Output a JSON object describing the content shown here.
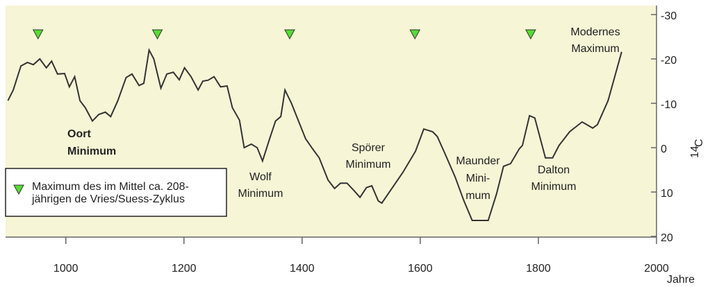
{
  "chart_data": {
    "type": "line",
    "xlabel": "Jahre",
    "ylabel_sup": "14",
    "ylabel": "C",
    "xlim": [
      898,
      2000
    ],
    "xticks": [
      1000,
      1200,
      1400,
      1600,
      1800,
      2000
    ],
    "ylim": [
      20,
      -30
    ],
    "yticks": [
      -30,
      -20,
      -10,
      0,
      10,
      20
    ],
    "series": [
      {
        "color": "#333333",
        "x": [
          902,
          911,
          924,
          935,
          945,
          956,
          967,
          976,
          986,
          998,
          1006,
          1015,
          1024,
          1033,
          1045,
          1056,
          1067,
          1076,
          1088,
          1102,
          1112,
          1124,
          1132,
          1141,
          1149,
          1161,
          1171,
          1182,
          1192,
          1201,
          1212,
          1224,
          1232,
          1241,
          1251,
          1262,
          1273,
          1282,
          1294,
          1302,
          1314,
          1324,
          1333,
          1345,
          1355,
          1364,
          1371,
          1382,
          1394,
          1406,
          1418,
          1429,
          1444,
          1455,
          1465,
          1476,
          1488,
          1498,
          1509,
          1518,
          1529,
          1535,
          1553,
          1571,
          1592,
          1606,
          1621,
          1629,
          1641,
          1659,
          1674,
          1688,
          1698,
          1715,
          1729,
          1741,
          1753,
          1768,
          1773,
          1785,
          1794,
          1812,
          1824,
          1835,
          1853,
          1874,
          1892,
          1900,
          1918,
          1941
        ],
        "values": [
          -10.6,
          -13,
          -18.4,
          -19.2,
          -18.7,
          -20,
          -18,
          -19.5,
          -16.6,
          -16.7,
          -13.7,
          -16,
          -10.6,
          -9,
          -6,
          -7.5,
          -8,
          -7,
          -10.6,
          -15.8,
          -16.6,
          -14,
          -14.5,
          -22,
          -20,
          -13.4,
          -16.6,
          -17,
          -15.3,
          -18,
          -16,
          -13,
          -15,
          -15.2,
          -16,
          -13.7,
          -13.9,
          -9,
          -6.2,
          0,
          -0.8,
          0,
          3,
          -2,
          -6,
          -7,
          -13,
          -10,
          -6,
          -2,
          0.3,
          2.3,
          7.3,
          9.2,
          8,
          8,
          9.7,
          11.2,
          9,
          8.6,
          12,
          12.5,
          9,
          5.5,
          0.8,
          -4.2,
          -3.6,
          -2.5,
          1.1,
          6.6,
          12,
          16.4,
          16.4,
          16.4,
          10.5,
          4.2,
          3.6,
          0.2,
          -0.5,
          -7.2,
          -6.7,
          2.3,
          2.3,
          -0.5,
          -3.6,
          -5.8,
          -4.4,
          -5.2,
          -10.6,
          -21.6
        ]
      }
    ],
    "markers": {
      "x": [
        953,
        1155,
        1379,
        1591,
        1787
      ],
      "color": "#55dd33"
    },
    "legend": {
      "lines": [
        "Maximum des im Mittel ca. 208-",
        "jährigen de Vries/Suess-Zyklus"
      ]
    },
    "annotations": [
      {
        "lines": [
          "Oort",
          "Minimum"
        ]
      },
      {
        "lines": [
          "Wolf",
          "Minimum"
        ]
      },
      {
        "lines": [
          "Spörer",
          "Minimum"
        ]
      },
      {
        "lines": [
          "Maunder",
          "Mini-",
          "mum"
        ]
      },
      {
        "lines": [
          "Dalton",
          "Minimum"
        ]
      },
      {
        "lines": [
          "Modernes",
          "Maximum"
        ]
      }
    ]
  }
}
